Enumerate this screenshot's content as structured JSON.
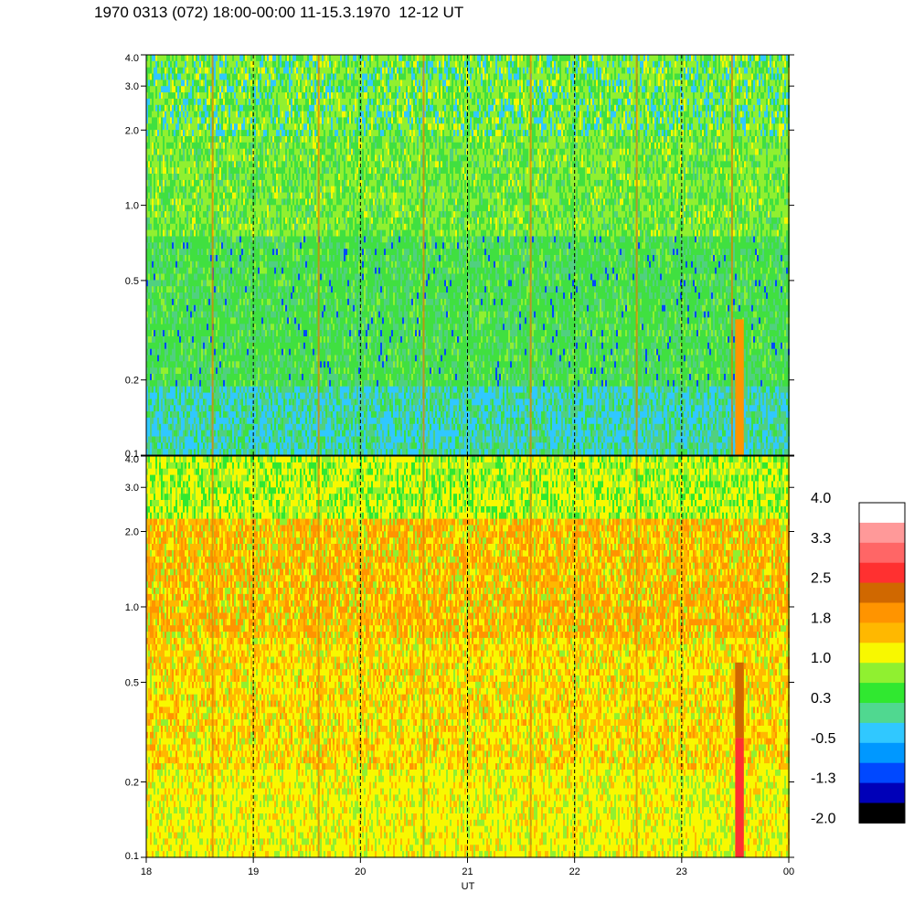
{
  "title": "1970 0313 (072) 18:00-00:00 11-15.3.1970  12-12 UT",
  "chart_data": {
    "type": "heatmap",
    "xlabel": "UT",
    "x_ticks": [
      "18",
      "19",
      "20",
      "21",
      "22",
      "23",
      "00"
    ],
    "x_range_hours": [
      18,
      24
    ],
    "dashed_vertical_lines_at_hours": [
      19,
      20,
      21,
      22,
      23
    ],
    "y_scale": "log",
    "y_ticks": [
      "0.1",
      "0.2",
      "0.5",
      "1.0",
      "2.0",
      "3.0",
      "4.0"
    ],
    "y_range": [
      0.1,
      4.0
    ],
    "panels": [
      {
        "dominant_colors": [
          "#40E040",
          "#50D080",
          "#90F030",
          "#30C8FF"
        ],
        "spike_hours": [
          18.62,
          19.61,
          20.59,
          21.59,
          22.58,
          23.47
        ],
        "event_band_hours": [
          23.5,
          23.58
        ]
      },
      {
        "dominant_colors": [
          "#F8F800",
          "#FFB800",
          "#FF9400",
          "#90F030"
        ],
        "spike_hours": [
          18.62,
          19.61,
          20.59,
          21.59,
          22.58
        ],
        "event_band_hours": [
          23.5,
          23.58
        ]
      }
    ],
    "colorbar": {
      "labels": [
        "4.0",
        "3.3",
        "2.5",
        "1.8",
        "1.0",
        "0.3",
        "-0.5",
        "-1.3",
        "-2.0"
      ],
      "colors_top_to_bottom": [
        "#FFFFFF",
        "#FF9999",
        "#FF6666",
        "#FF3030",
        "#D06800",
        "#FF9400",
        "#FFB800",
        "#F8F800",
        "#90F030",
        "#30E830",
        "#50D890",
        "#30C8FF",
        "#0098FF",
        "#0048FF",
        "#0000B8",
        "#000000"
      ]
    }
  }
}
